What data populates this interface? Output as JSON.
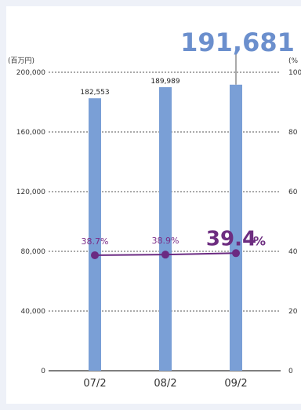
{
  "chart_data": {
    "type": "bar",
    "categories": [
      "07/2",
      "08/2",
      "09/2"
    ],
    "series": [
      {
        "values": [
          182553,
          189989,
          191681
        ],
        "value_labels": [
          "182,553",
          "189,989",
          "191,681"
        ]
      },
      {
        "values": [
          38.7,
          38.9,
          39.4
        ],
        "value_labels": [
          "38.7%",
          "38.9%",
          "39.4"
        ],
        "type": "line"
      }
    ],
    "highlight_unit": "%",
    "left_axis": {
      "unit": "(百万円)",
      "ylim": [
        0,
        200000
      ],
      "ticks": [
        "200,000",
        "160,000",
        "120,000",
        "80,000",
        "40,000",
        "0"
      ]
    },
    "right_axis": {
      "unit": "(%",
      "ylim": [
        0,
        100
      ],
      "ticks": [
        "100",
        "80",
        "60",
        "40",
        "20",
        "0"
      ]
    },
    "grid": "dotted horizontal",
    "colors": {
      "bar": "#7a9fd6",
      "line": "#6b2a82",
      "highlight_value": "#6b8fcd"
    }
  }
}
